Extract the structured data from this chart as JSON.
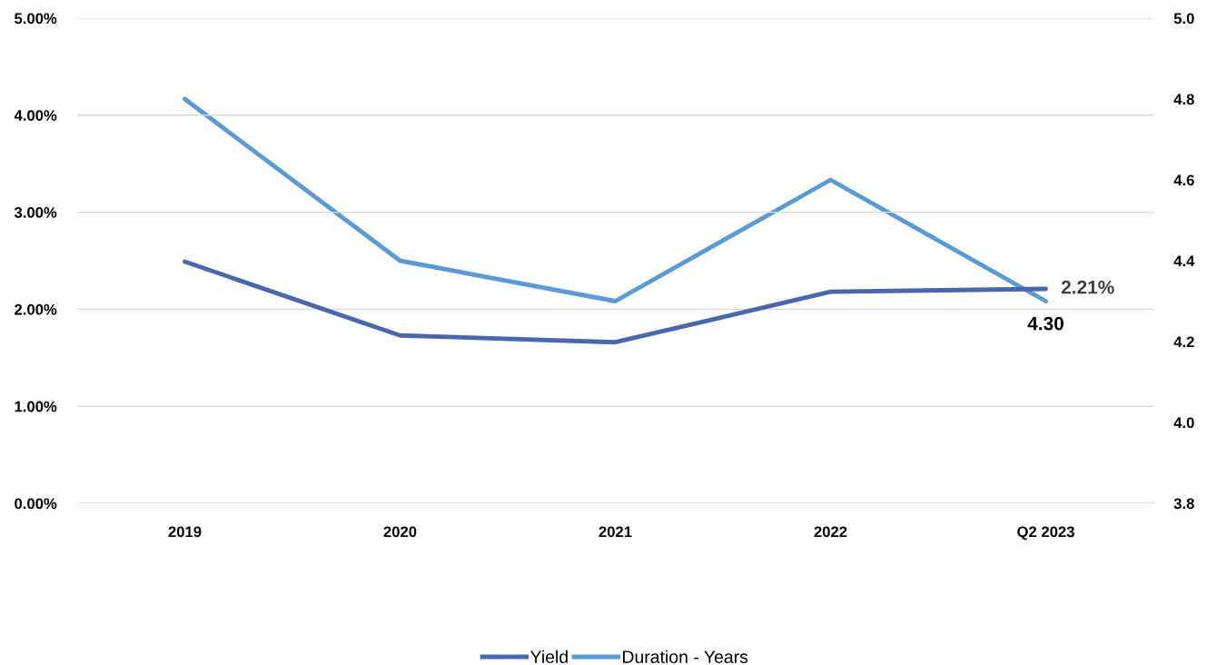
{
  "chart_data": {
    "type": "line",
    "categories": [
      "2019",
      "2020",
      "2021",
      "2022",
      "Q2 2023"
    ],
    "series": [
      {
        "name": "Yield",
        "color": "#4a66ac",
        "values": [
          2.49,
          1.73,
          1.66,
          2.18,
          2.21
        ],
        "value_labels": [
          null,
          null,
          null,
          null,
          "2.21%"
        ]
      },
      {
        "name": "Duration - Years",
        "color": "#5b9bd5",
        "axis": "y2",
        "values": [
          4.8,
          4.4,
          4.3,
          4.6,
          4.3
        ],
        "value_labels": [
          null,
          null,
          null,
          null,
          "4.30"
        ]
      }
    ],
    "ylim": [
      0,
      5
    ],
    "yticks": [
      {
        "value": 0,
        "label": "0.00%"
      },
      {
        "value": 1,
        "label": "1.00%"
      },
      {
        "value": 2,
        "label": "2.00%"
      },
      {
        "value": 3,
        "label": "3.00%"
      },
      {
        "value": 4,
        "label": "4.00%"
      },
      {
        "value": 5,
        "label": "5.00%"
      }
    ],
    "y2lim": [
      3.8,
      5.0
    ],
    "y2ticks": [
      {
        "value": 3.8,
        "label": "3.8"
      },
      {
        "value": 4.0,
        "label": "4.0"
      },
      {
        "value": 4.2,
        "label": "4.2"
      },
      {
        "value": 4.4,
        "label": "4.4"
      },
      {
        "value": 4.6,
        "label": "4.6"
      },
      {
        "value": 4.8,
        "label": "4.8"
      },
      {
        "value": 5.0,
        "label": "5.0"
      }
    ],
    "grid": "y",
    "legend": "bottom",
    "marker": "none",
    "line_style": "solid"
  }
}
